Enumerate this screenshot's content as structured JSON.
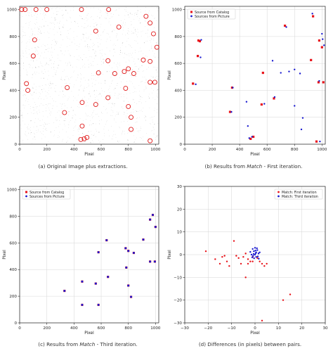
{
  "captions": {
    "a": "(a) Original Image plus extractions.",
    "b_pre": "(b) Results from ",
    "b_em": "Match",
    "b_post": " - First iteration.",
    "c_pre": "(c) Results from ",
    "c_em": "Match",
    "c_post": " - Third iteration.",
    "d": "(d) Differences (in pixels) between pairs."
  },
  "colors": {
    "catalog": "#e8131a",
    "picture": "#1a1ad0",
    "circle": "#e01a1a",
    "grid": "#d6d6d6",
    "speck": "#8a8a8a"
  },
  "chart_data": [
    {
      "id": "a",
      "type": "scatter",
      "xlabel": "Pixel",
      "ylabel": "Pixel",
      "xlim": [
        0,
        1024
      ],
      "ylim": [
        0,
        1024
      ],
      "xticks": [
        0,
        200,
        400,
        600,
        800,
        1000
      ],
      "yticks": [
        0,
        200,
        400,
        600,
        800,
        1000
      ],
      "grid": false,
      "series": [
        {
          "marker": "open-circle",
          "points": [
            [
              15,
              1000
            ],
            [
              40,
              1000
            ],
            [
              120,
              1000
            ],
            [
              200,
              1000
            ],
            [
              455,
              1000
            ],
            [
              655,
              1000
            ],
            [
              930,
              950
            ],
            [
              960,
              900
            ],
            [
              985,
              820
            ],
            [
              1010,
              720
            ],
            [
              110,
              775
            ],
            [
              100,
              655
            ],
            [
              560,
              840
            ],
            [
              730,
              870
            ],
            [
              50,
              450
            ],
            [
              60,
              400
            ],
            [
              350,
              420
            ],
            [
              460,
              310
            ],
            [
              330,
              235
            ],
            [
              560,
              295
            ],
            [
              650,
              620
            ],
            [
              580,
              530
            ],
            [
              700,
              525
            ],
            [
              770,
              540
            ],
            [
              800,
              560
            ],
            [
              840,
              525
            ],
            [
              910,
              625
            ],
            [
              960,
              615
            ],
            [
              960,
              460
            ],
            [
              995,
              460
            ],
            [
              650,
              345
            ],
            [
              780,
              415
            ],
            [
              800,
              280
            ],
            [
              820,
              200
            ],
            [
              820,
              110
            ],
            [
              460,
              135
            ],
            [
              450,
              35
            ],
            [
              475,
              40
            ],
            [
              495,
              50
            ],
            [
              960,
              25
            ]
          ]
        }
      ]
    },
    {
      "id": "b",
      "type": "scatter",
      "xlabel": "Pixel",
      "ylabel": "Pixel",
      "xlim": [
        0,
        1024
      ],
      "ylim": [
        0,
        1024
      ],
      "xticks": [
        0,
        200,
        400,
        600,
        800,
        1000
      ],
      "yticks": [
        0,
        200,
        400,
        600,
        800,
        1000
      ],
      "grid": true,
      "legend": "top-left",
      "series": [
        {
          "name": "Source from Catalog",
          "marker": "square",
          "points": [
            [
              60,
              450
            ],
            [
              100,
              770
            ],
            [
              110,
              765
            ],
            [
              95,
              655
            ],
            [
              330,
              240
            ],
            [
              345,
              420
            ],
            [
              480,
              40
            ],
            [
              500,
              55
            ],
            [
              560,
              295
            ],
            [
              570,
              530
            ],
            [
              650,
              340
            ],
            [
              730,
              880
            ],
            [
              920,
              625
            ],
            [
              935,
              950
            ],
            [
              980,
              770
            ],
            [
              1000,
              720
            ],
            [
              1010,
              460
            ],
            [
              975,
              460
            ],
            [
              960,
              20
            ]
          ]
        },
        {
          "name": "Sources from Picture",
          "marker": "circle",
          "points": [
            [
              80,
              445
            ],
            [
              120,
              775
            ],
            [
              115,
              645
            ],
            [
              340,
              240
            ],
            [
              350,
              420
            ],
            [
              450,
              315
            ],
            [
              460,
              135
            ],
            [
              470,
              45
            ],
            [
              490,
              55
            ],
            [
              580,
              300
            ],
            [
              640,
              620
            ],
            [
              655,
              350
            ],
            [
              700,
              530
            ],
            [
              740,
              870
            ],
            [
              760,
              540
            ],
            [
              800,
              555
            ],
            [
              840,
              525
            ],
            [
              850,
              110
            ],
            [
              800,
              285
            ],
            [
              860,
              195
            ],
            [
              930,
              970
            ],
            [
              1000,
              820
            ],
            [
              1005,
              780
            ],
            [
              1015,
              735
            ],
            [
              980,
              470
            ],
            [
              985,
              20
            ]
          ]
        }
      ]
    },
    {
      "id": "c",
      "type": "scatter",
      "xlabel": "Pixel",
      "ylabel": "Pixel",
      "xlim": [
        0,
        1024
      ],
      "ylim": [
        0,
        1024
      ],
      "xticks": [
        0,
        200,
        400,
        600,
        800,
        1000
      ],
      "yticks": [
        0,
        200,
        400,
        600,
        800,
        1000
      ],
      "grid": true,
      "legend": "top-left",
      "series": [
        {
          "name": "Source from Catalog",
          "marker": "square",
          "points": [
            [
              330,
              240
            ],
            [
              460,
              310
            ],
            [
              460,
              135
            ],
            [
              560,
              295
            ],
            [
              580,
              530
            ],
            [
              580,
              135
            ],
            [
              640,
              620
            ],
            [
              650,
              345
            ],
            [
              780,
              560
            ],
            [
              800,
              540
            ],
            [
              785,
              415
            ],
            [
              800,
              280
            ],
            [
              820,
              195
            ],
            [
              840,
              525
            ],
            [
              910,
              625
            ],
            [
              960,
              775
            ],
            [
              980,
              810
            ],
            [
              1000,
              720
            ],
            [
              960,
              460
            ],
            [
              995,
              460
            ]
          ]
        },
        {
          "name": "Sources from Picture",
          "marker": "circle",
          "points": [
            [
              330,
              240
            ],
            [
              460,
              310
            ],
            [
              460,
              135
            ],
            [
              560,
              295
            ],
            [
              580,
              530
            ],
            [
              580,
              135
            ],
            [
              640,
              620
            ],
            [
              650,
              345
            ],
            [
              780,
              560
            ],
            [
              800,
              540
            ],
            [
              785,
              415
            ],
            [
              800,
              280
            ],
            [
              820,
              195
            ],
            [
              840,
              525
            ],
            [
              910,
              625
            ],
            [
              960,
              775
            ],
            [
              980,
              810
            ],
            [
              1000,
              720
            ],
            [
              960,
              460
            ],
            [
              995,
              460
            ]
          ]
        }
      ]
    },
    {
      "id": "d",
      "type": "scatter",
      "xlabel": "Pixel",
      "ylabel": "Pixel",
      "xlim": [
        -30,
        30
      ],
      "ylim": [
        -30,
        30
      ],
      "xticks": [
        -30,
        -20,
        -10,
        0,
        10,
        20,
        30
      ],
      "yticks": [
        -30,
        -20,
        -10,
        0,
        10,
        20,
        30
      ],
      "grid": true,
      "legend": "top-right",
      "series": [
        {
          "name": "Match: First iteration",
          "marker": "circle",
          "points": [
            [
              -21,
              1.5
            ],
            [
              -17,
              -2
            ],
            [
              -15,
              -4
            ],
            [
              -14,
              -1
            ],
            [
              -13,
              -0.5
            ],
            [
              -12,
              -3
            ],
            [
              -11,
              -5
            ],
            [
              -9,
              6
            ],
            [
              -8,
              -0.5
            ],
            [
              -7,
              -1.5
            ],
            [
              -6,
              -4
            ],
            [
              -5,
              -1
            ],
            [
              -4,
              0.5
            ],
            [
              -3,
              -2
            ],
            [
              -2,
              -3
            ],
            [
              -1,
              -1
            ],
            [
              -4,
              -10
            ],
            [
              -3,
              -4
            ],
            [
              2,
              -3
            ],
            [
              3,
              -4
            ],
            [
              4,
              -5
            ],
            [
              5,
              -4
            ],
            [
              1,
              -1.5
            ],
            [
              -1,
              -3
            ],
            [
              12,
              -20
            ],
            [
              15,
              -17.5
            ],
            [
              3,
              -29
            ]
          ]
        },
        {
          "name": "Match: Third iteration",
          "marker": "circle",
          "points": [
            [
              0,
              0
            ],
            [
              0.5,
              1
            ],
            [
              -0.5,
              1.5
            ],
            [
              1,
              2
            ],
            [
              -1,
              2.5
            ],
            [
              0,
              3
            ],
            [
              0.5,
              -1
            ],
            [
              -0.8,
              -0.5
            ],
            [
              1.5,
              0.5
            ],
            [
              -1.5,
              0
            ],
            [
              0.2,
              1.8
            ],
            [
              1.2,
              -0.8
            ],
            [
              -0.4,
              -1.6
            ],
            [
              2,
              1
            ],
            [
              -2,
              1.2
            ],
            [
              0.8,
              2.8
            ],
            [
              -1.2,
              -1.2
            ],
            [
              1.6,
              -1.8
            ],
            [
              0.3,
              0.6
            ],
            [
              -0.6,
              0.3
            ]
          ]
        }
      ]
    }
  ]
}
